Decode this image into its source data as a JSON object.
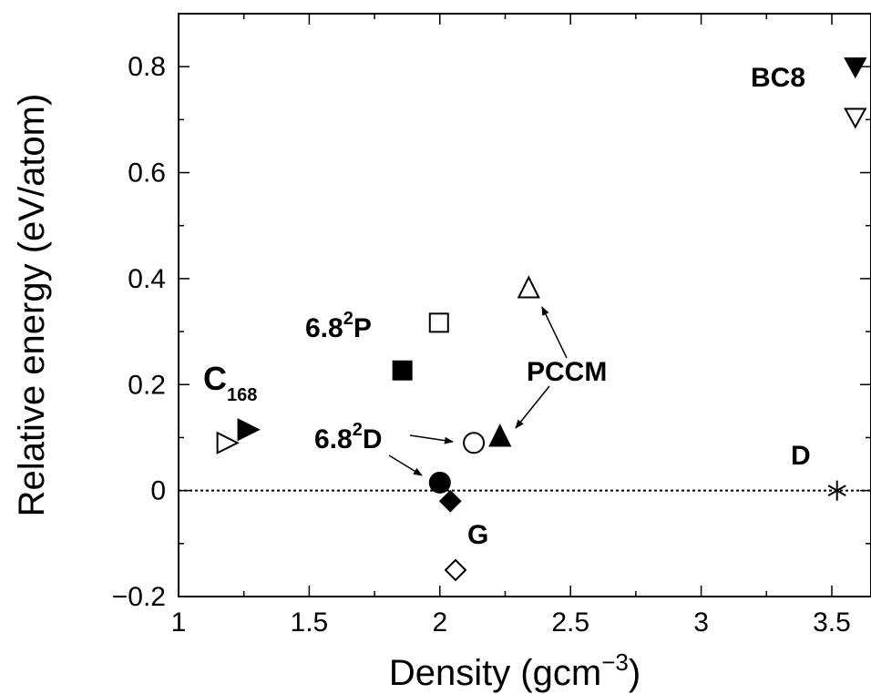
{
  "chart_data": {
    "type": "scatter",
    "xlabel": "Density (gcm",
    "xlabel_sup": "−3",
    "xlabel_close": ")",
    "ylabel": "Relative energy (eV/atom)",
    "xlim": [
      1,
      3.65
    ],
    "ylim": [
      -0.2,
      0.9
    ],
    "x_ticks": [
      1,
      1.5,
      2,
      2.5,
      3,
      3.5
    ],
    "x_tick_labels": [
      "1",
      "1.5",
      "2",
      "2.5",
      "3",
      "3.5"
    ],
    "y_ticks": [
      -0.2,
      0,
      0.2,
      0.4,
      0.6,
      0.8
    ],
    "y_tick_labels": [
      "−0.2",
      "0",
      "0.2",
      "0.4",
      "0.6",
      "0.8"
    ],
    "grid": false,
    "reference_line": {
      "y": 0,
      "style": "dotted"
    },
    "points": [
      {
        "x": 1.18,
        "y": 0.09,
        "marker": "triangle-right",
        "filled": false
      },
      {
        "x": 1.26,
        "y": 0.115,
        "marker": "triangle-right",
        "filled": true
      },
      {
        "x": 1.86,
        "y": 0.225,
        "marker": "square",
        "filled": true
      },
      {
        "x": 2.0,
        "y": 0.315,
        "marker": "square",
        "filled": false
      },
      {
        "x": 2.0,
        "y": 0.015,
        "marker": "circle",
        "filled": true
      },
      {
        "x": 2.13,
        "y": 0.09,
        "marker": "circle",
        "filled": false
      },
      {
        "x": 2.23,
        "y": 0.1,
        "marker": "triangle-up",
        "filled": true
      },
      {
        "x": 2.34,
        "y": 0.38,
        "marker": "triangle-up",
        "filled": false
      },
      {
        "x": 2.04,
        "y": -0.02,
        "marker": "diamond",
        "filled": true
      },
      {
        "x": 2.06,
        "y": -0.15,
        "marker": "diamond",
        "filled": false
      },
      {
        "x": 3.52,
        "y": 0.0,
        "marker": "asterisk",
        "filled": false
      },
      {
        "x": 3.59,
        "y": 0.8,
        "marker": "triangle-down",
        "filled": true
      },
      {
        "x": 3.59,
        "y": 0.705,
        "marker": "triangle-down",
        "filled": false
      }
    ],
    "annotations": {
      "bc8": "BC8",
      "p682_base": "6.8",
      "p682_sup": "2",
      "p682_tail": "P",
      "c168_base": "C",
      "c168_sub": "168",
      "pccm": "PCCM",
      "d682_base": "6.8",
      "d682_sup": "2",
      "d682_tail": "D",
      "diamond_label": "D",
      "graphite_label": "G"
    },
    "colors": {
      "ink": "#000000",
      "background": "#ffffff"
    }
  }
}
